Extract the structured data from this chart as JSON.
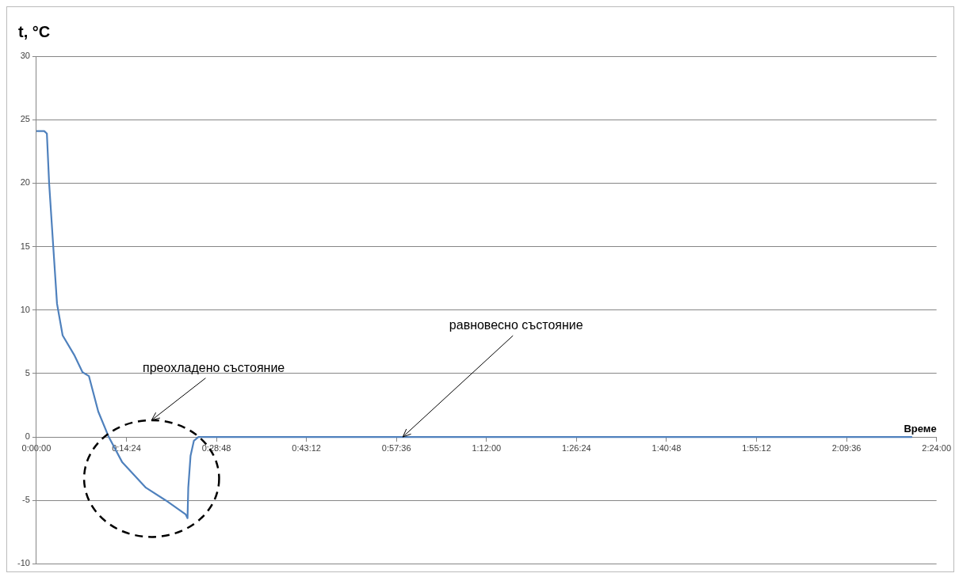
{
  "chart_data": {
    "type": "line",
    "ylabel": "t, °C",
    "xlabel": "Време",
    "xlim": [
      0,
      2.4
    ],
    "xticks": [
      {
        "value": 0,
        "label": "0:00:00"
      },
      {
        "value": 0.24,
        "label": "0:14:24"
      },
      {
        "value": 0.48,
        "label": "0:28:48"
      },
      {
        "value": 0.72,
        "label": "0:43:12"
      },
      {
        "value": 0.96,
        "label": "0:57:36"
      },
      {
        "value": 1.2,
        "label": "1:12:00"
      },
      {
        "value": 1.44,
        "label": "1:26:24"
      },
      {
        "value": 1.68,
        "label": "1:40:48"
      },
      {
        "value": 1.92,
        "label": "1:55:12"
      },
      {
        "value": 2.16,
        "label": "2:09:36"
      },
      {
        "value": 2.4,
        "label": "2:24:00"
      }
    ],
    "ylim": [
      -10,
      30
    ],
    "yticks": [
      -10,
      -5,
      0,
      5,
      10,
      15,
      20,
      25,
      30
    ],
    "grid": "y",
    "marker": "none",
    "line_style": "solid",
    "series": [
      {
        "color": "#4f81bd",
        "x": [
          0,
          0.021,
          0.028,
          0.034,
          0.045,
          0.055,
          0.07,
          0.102,
          0.123,
          0.14,
          0.165,
          0.193,
          0.229,
          0.292,
          0.345,
          0.398,
          0.403,
          0.405,
          0.411,
          0.42,
          0.432,
          0.6,
          0.9,
          1.2,
          1.5,
          1.8,
          2.1,
          2.335
        ],
        "values": [
          24.1,
          24.1,
          23.9,
          20,
          15,
          10.5,
          8,
          6.4,
          5.1,
          4.8,
          2,
          0,
          -2,
          -4,
          -5,
          -6.1,
          -6.4,
          -4,
          -1.5,
          -0.3,
          0,
          0,
          0,
          0,
          0,
          0,
          0,
          0
        ]
      }
    ],
    "annotations": [
      "преохладено състояние",
      {
        "text": "равновесно състояние",
        "x": 0.977,
        "y": 0
      }
    ]
  }
}
